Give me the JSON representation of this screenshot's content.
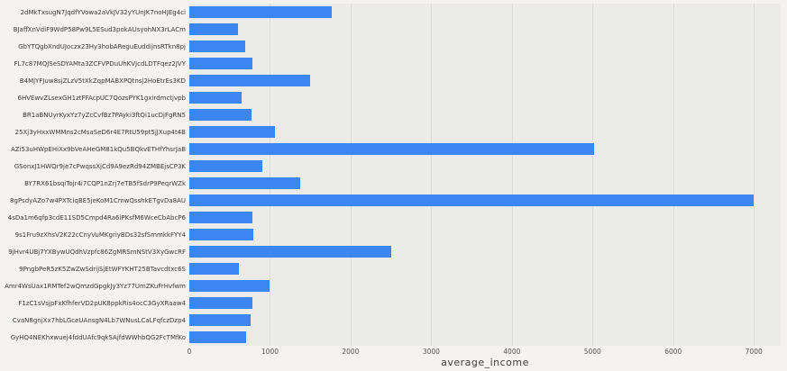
{
  "figure": {
    "background": "#f4f3f1",
    "plot_background": "#ebebe9",
    "bar_color": "#3b86f0",
    "grid_color": "#dcdcda"
  },
  "chart_data": {
    "type": "bar",
    "orientation": "horizontal",
    "title": "",
    "xlabel": "average_income",
    "ylabel": "",
    "xlim": [
      0,
      7333
    ],
    "xticks": [
      0,
      1000,
      2000,
      3000,
      4000,
      5000,
      6000,
      7000
    ],
    "grid": true,
    "legend": false,
    "categories": [
      "2dMkTxsugN7JqdfYVowa2aVkJV32yYUnJK7noHJEg4ci",
      "BJaffXnVdiF9WdP58Pw9L5ESud3pokAUsyohNX3rLACm",
      "GbYTQgbXndUJoczx23Hy3hobAReguEuddijnsRTkn8pj",
      "FL7c87MQJSeSDYAMta3ZCFVPDuUhKVJcdLDTFqez2JVY",
      "B4MjYFJuw8sjZLzV5tXkZqpMABXPQtnsj2HoEtrEs3KD",
      "6HVEwvZLsexGH1ztFFAcpUC7QozsPYK1gxirdmctjvpb",
      "BR1aBNUyrKyxYz7yZcCvfBz7PAyki3ftQi1ucDjFgRN5",
      "25Xj3yHxxWMMns2cMsaSeD6r4E7RtU59pt5jJXup4t4B",
      "AZi53uHWpEHiXx9bVeAHeGM81kQu5BQkvETHfYhsrJaB",
      "GSonxJ1HWQr9je7cPwqssXjCd9A9ezRd94ZMBEjsCP3K",
      "BY7RX61bsqiTojr4i7CQP1nZrj7eTB5fSdrP9PeqrWZk",
      "8gPsdyAZo7w4PXTciqBE5jeKoM1CmwQsshkETgvDa8AU",
      "4sDa1m6qfp3cdE11SD5Cmpd4Ra6iPKsfM6WceCbAbcP6",
      "9s1Fru9zXhsV2K22cCnyVuMKgriyBDs32sfSmmkkFYY4",
      "9jHvr4UBj7YXBywUQdhVzpfc86ZgMRSmNStV3XyGwcRF",
      "9PngbPeR5zK5ZwZwSdrijSjEtWFYKHT25BTavcdtxc6S",
      "Amr4WsUax1RMTef2wQmzdGpgkJy3Yz77UmZKuFrHvfwm",
      "F1zC1sVsjpFxKfhferVD2pUK8ppkRis4ocC3GyXRaaw4",
      "CvaN8gnjXx7hbLGceUAnsgN4Lb7WNusLCaLFqfczDzp4",
      "GyHQ4NEKhxwuej4fddUAfc9qkSAjfdWWhbQG2FcTMfKo"
    ],
    "values": [
      1770,
      600,
      690,
      780,
      1500,
      650,
      770,
      1060,
      5020,
      900,
      1370,
      7000,
      780,
      795,
      2500,
      620,
      1000,
      780,
      760,
      700
    ]
  }
}
